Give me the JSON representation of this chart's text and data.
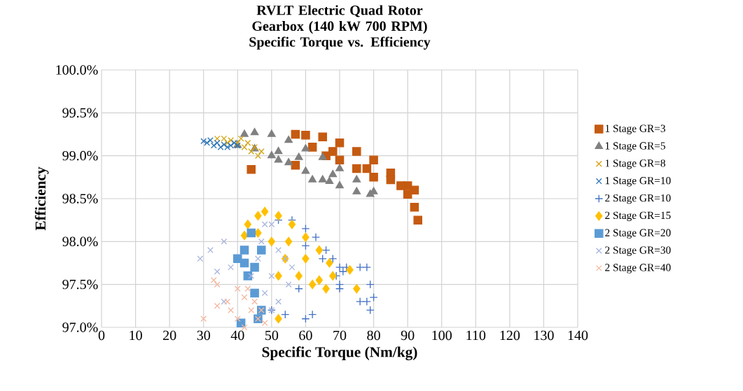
{
  "chart_data": {
    "type": "scatter",
    "title": "RVLT Electric Quad Rotor Gearbox (140 kW 700 RPM)",
    "subtitle": "Specific Torque vs. Efficiency",
    "xlabel": "Specific Torque (Nm/kg)",
    "ylabel": "Efficiency",
    "xlim": [
      0,
      140
    ],
    "ylim": [
      97,
      100
    ],
    "xticks": [
      0,
      10,
      20,
      30,
      40,
      50,
      60,
      70,
      80,
      90,
      100,
      110,
      120,
      130,
      140
    ],
    "yticks": [
      {
        "value": 97,
        "label": "97.0%"
      },
      {
        "value": 97.5,
        "label": "97.5%"
      },
      {
        "value": 98,
        "label": "98.0%"
      },
      {
        "value": 98.5,
        "label": "98.5%"
      },
      {
        "value": 99,
        "label": "99.0%"
      },
      {
        "value": 99.5,
        "label": "99.5%"
      },
      {
        "value": 100,
        "label": "100.0%"
      }
    ],
    "grid": true,
    "legend": "right",
    "series": [
      {
        "name": "1 Stage GR=3",
        "color": "#c55a11",
        "marker": "square",
        "x": [
          57,
          60,
          65,
          70,
          75,
          80,
          85,
          90,
          92,
          62,
          66,
          70,
          75,
          80,
          85,
          90,
          92,
          93,
          44,
          57,
          68,
          78,
          88
        ],
        "values": [
          99.25,
          99.24,
          99.22,
          99.15,
          99.05,
          98.95,
          98.8,
          98.65,
          98.6,
          99.1,
          99.0,
          98.95,
          98.85,
          98.75,
          98.72,
          98.55,
          98.4,
          98.25,
          98.84,
          98.89,
          99.05,
          98.85,
          98.65
        ]
      },
      {
        "name": "1 Stage GR=5",
        "color": "#808080",
        "marker": "triangle",
        "x": [
          42,
          45,
          50,
          55,
          60,
          65,
          70,
          75,
          80,
          40,
          45,
          50,
          55,
          60,
          65,
          70,
          75,
          79,
          52,
          52,
          62,
          67,
          58,
          68
        ],
        "values": [
          99.25,
          99.27,
          99.25,
          99.18,
          99.08,
          98.98,
          98.85,
          98.72,
          98.58,
          99.12,
          99.08,
          99.0,
          98.92,
          98.82,
          98.72,
          98.65,
          98.58,
          98.55,
          98.95,
          99.05,
          98.72,
          98.7,
          98.98,
          98.78
        ]
      },
      {
        "name": "1 Stage GR=8",
        "color": "#d4a20f",
        "marker": "cross",
        "x": [
          34,
          36,
          38,
          40,
          42,
          44,
          46,
          47,
          41,
          37,
          43,
          45
        ],
        "values": [
          99.2,
          99.2,
          99.18,
          99.15,
          99.1,
          99.05,
          99.0,
          99.05,
          99.2,
          99.15,
          99.15,
          99.1
        ]
      },
      {
        "name": "1 Stage GR=10",
        "color": "#2e75b6",
        "marker": "cross",
        "x": [
          30,
          31,
          32,
          33,
          34,
          35,
          36,
          37,
          38,
          39,
          40
        ],
        "values": [
          99.17,
          99.15,
          99.18,
          99.12,
          99.15,
          99.1,
          99.13,
          99.1,
          99.12,
          99.15,
          99.12
        ]
      },
      {
        "name": "2 Stage GR=10",
        "color": "#4472c4",
        "marker": "plus",
        "x": [
          52,
          56,
          60,
          63,
          66,
          68,
          70,
          71,
          65,
          60,
          58,
          60,
          62,
          54,
          50,
          69,
          70,
          72,
          76,
          78,
          79,
          80,
          78,
          76,
          79,
          70
        ],
        "values": [
          98.25,
          98.25,
          98.15,
          98.05,
          97.9,
          97.8,
          97.7,
          97.65,
          97.8,
          97.95,
          97.45,
          97.1,
          97.15,
          97.15,
          97.2,
          97.6,
          97.5,
          97.7,
          97.7,
          97.7,
          97.5,
          97.35,
          97.3,
          97.3,
          97.2,
          97.45
        ]
      },
      {
        "name": "2 Stage GR=15",
        "color": "#ffc000",
        "marker": "diamond",
        "x": [
          46,
          48,
          52,
          56,
          60,
          64,
          67,
          68,
          66,
          64,
          62,
          58,
          54,
          50,
          46,
          43,
          42,
          73,
          75,
          52,
          55,
          60,
          52
        ],
        "values": [
          98.3,
          98.35,
          98.3,
          98.2,
          98.05,
          97.9,
          97.75,
          97.6,
          97.45,
          97.55,
          97.5,
          97.6,
          97.8,
          98.0,
          98.1,
          98.2,
          98.07,
          97.67,
          97.45,
          97.1,
          98.0,
          97.8,
          97.6
        ]
      },
      {
        "name": "2 Stage GR=20",
        "color": "#5b9bd5",
        "marker": "square",
        "x": [
          44,
          42,
          40,
          42,
          43,
          45,
          47,
          45,
          47,
          41,
          46
        ],
        "values": [
          98.1,
          97.9,
          97.8,
          97.75,
          97.6,
          97.7,
          97.9,
          97.4,
          97.2,
          97.05,
          97.1
        ]
      },
      {
        "name": "2 Stage GR=30",
        "color": "#a9b6de",
        "marker": "cross",
        "x": [
          29,
          32,
          36,
          34,
          38,
          36,
          44,
          48,
          50,
          52,
          54,
          56,
          55,
          52,
          50,
          48,
          46,
          50,
          47
        ],
        "values": [
          97.8,
          97.9,
          98.0,
          97.65,
          97.7,
          97.3,
          97.6,
          98.2,
          98.2,
          97.9,
          97.8,
          97.7,
          97.5,
          97.3,
          97.2,
          97.4,
          97.8,
          97.6,
          98.0
        ]
      },
      {
        "name": "2 Stage GR=40",
        "color": "#f4b8a0",
        "marker": "cross",
        "x": [
          30,
          33,
          34,
          34,
          37,
          38,
          40,
          42,
          44,
          46,
          48,
          42,
          45,
          47,
          43,
          40
        ],
        "values": [
          97.1,
          97.55,
          97.5,
          97.25,
          97.3,
          97.2,
          97.45,
          97.35,
          97.2,
          97.1,
          97.05,
          97.0,
          97.3,
          97.2,
          97.45,
          97.1
        ]
      }
    ]
  }
}
